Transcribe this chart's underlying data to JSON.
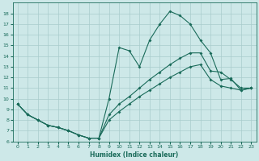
{
  "xlabel": "Humidex (Indice chaleur)",
  "background_color": "#cde8e8",
  "grid_color": "#a8cccc",
  "line_color": "#1a6b5a",
  "xlim": [
    -0.5,
    23.5
  ],
  "ylim": [
    6,
    19
  ],
  "xticks": [
    0,
    1,
    2,
    3,
    4,
    5,
    6,
    7,
    8,
    9,
    10,
    11,
    12,
    13,
    14,
    15,
    16,
    17,
    18,
    19,
    20,
    21,
    22,
    23
  ],
  "yticks": [
    6,
    7,
    8,
    9,
    10,
    11,
    12,
    13,
    14,
    15,
    16,
    17,
    18
  ],
  "line1_x": [
    0,
    1,
    2,
    3,
    4,
    5,
    6,
    7,
    8,
    9,
    10,
    11,
    12,
    13,
    14,
    15,
    16,
    17,
    18,
    19,
    20,
    21,
    22,
    23
  ],
  "line1_y": [
    9.5,
    8.5,
    8.0,
    7.5,
    7.3,
    7.0,
    6.6,
    6.3,
    6.3,
    10.0,
    14.8,
    14.5,
    13.0,
    15.5,
    17.0,
    18.2,
    17.8,
    17.0,
    15.5,
    14.3,
    11.8,
    11.9,
    10.8,
    11.0
  ],
  "line2_x": [
    0,
    1,
    2,
    3,
    4,
    5,
    6,
    7,
    8,
    9,
    10,
    11,
    12,
    13,
    14,
    15,
    16,
    17,
    18,
    19,
    20,
    21,
    22,
    23
  ],
  "line2_y": [
    9.5,
    8.5,
    8.0,
    7.5,
    7.3,
    7.0,
    6.6,
    6.3,
    6.3,
    8.5,
    9.5,
    10.2,
    11.0,
    11.8,
    12.5,
    13.2,
    13.8,
    14.3,
    14.3,
    12.6,
    12.5,
    11.8,
    11.0,
    11.0
  ],
  "line3_x": [
    0,
    1,
    2,
    3,
    4,
    5,
    6,
    7,
    8,
    9,
    10,
    11,
    12,
    13,
    14,
    15,
    16,
    17,
    18,
    19,
    20,
    21,
    22,
    23
  ],
  "line3_y": [
    9.5,
    8.5,
    8.0,
    7.5,
    7.3,
    7.0,
    6.6,
    6.3,
    6.3,
    8.0,
    8.8,
    9.5,
    10.2,
    10.8,
    11.4,
    12.0,
    12.5,
    13.0,
    13.2,
    11.8,
    11.2,
    11.0,
    10.8,
    11.0
  ]
}
